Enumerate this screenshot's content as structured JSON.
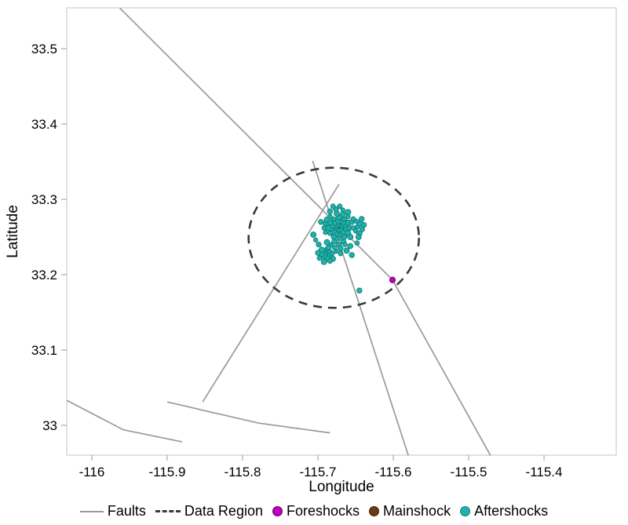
{
  "chart_data": {
    "type": "scatter",
    "title": "",
    "xlabel": "Longitude",
    "ylabel": "Latitude",
    "xlim": [
      -116.0333,
      -115.3042
    ],
    "ylim": [
      32.9604,
      33.5542
    ],
    "grid": false,
    "legend_position": "bottom",
    "x_ticks": {
      "values": [
        -116,
        -115.9,
        -115.8,
        -115.7,
        -115.6,
        -115.5,
        -115.4
      ],
      "labels": [
        "-116",
        "-115.9",
        "-115.8",
        "-115.7",
        "-115.6",
        "-115.5",
        "-115.4"
      ]
    },
    "y_ticks": {
      "values": [
        33,
        33.1,
        33.2,
        33.3,
        33.4,
        33.5
      ],
      "labels": [
        "33",
        "33.1",
        "33.2",
        "33.3",
        "33.4",
        "33.5"
      ]
    },
    "series": {
      "faults": {
        "label": "Faults",
        "color": "#9a9a9a",
        "polylines": [
          [
            [
              -115.963,
              33.554
            ],
            [
              -115.601,
              33.193
            ],
            [
              -115.471,
              32.96
            ]
          ],
          [
            [
              -115.707,
              33.351
            ],
            [
              -115.58,
              32.96
            ]
          ],
          [
            [
              -115.672,
              33.32
            ],
            [
              -115.853,
              33.031
            ]
          ],
          [
            [
              -116.033,
              33.033
            ],
            [
              -115.958,
              32.994
            ],
            [
              -115.88,
              32.978
            ]
          ],
          [
            [
              -115.9,
              33.031
            ],
            [
              -115.779,
              33.003
            ],
            [
              -115.684,
              32.99
            ]
          ]
        ]
      },
      "data_region": {
        "label": "Data Region",
        "color": "#3a3a3a",
        "style": "dashed",
        "ellipse": {
          "center": [
            -115.679,
            33.249
          ],
          "rx": 0.113,
          "ry": 0.093
        }
      },
      "foreshocks": {
        "label": "Foreshocks",
        "color": "#bf00bf",
        "edge": "#670067",
        "points": [
          [
            -115.601,
            33.193
          ]
        ]
      },
      "mainshock": {
        "label": "Mainshock",
        "color": "#6b3a10",
        "edge": "#3c2007",
        "points": [
          [
            -115.676,
            33.256
          ]
        ]
      },
      "aftershocks": {
        "label": "Aftershocks",
        "color": "#20b2aa",
        "edge": "#0e7d78",
        "points": [
          [
            -115.672,
            33.262
          ],
          [
            -115.668,
            33.262
          ],
          [
            -115.669,
            33.265
          ],
          [
            -115.672,
            33.266
          ],
          [
            -115.675,
            33.265
          ],
          [
            -115.676,
            33.262
          ],
          [
            -115.675,
            33.259
          ],
          [
            -115.672,
            33.258
          ],
          [
            -115.669,
            33.259
          ],
          [
            -115.663,
            33.264
          ],
          [
            -115.666,
            33.268
          ],
          [
            -115.67,
            33.271
          ],
          [
            -115.674,
            33.271
          ],
          [
            -115.678,
            33.268
          ],
          [
            -115.681,
            33.264
          ],
          [
            -115.681,
            33.26
          ],
          [
            -115.678,
            33.256
          ],
          [
            -115.674,
            33.253
          ],
          [
            -115.67,
            33.253
          ],
          [
            -115.666,
            33.256
          ],
          [
            -115.663,
            33.26
          ],
          [
            -115.658,
            33.262
          ],
          [
            -115.66,
            33.269
          ],
          [
            -115.665,
            33.274
          ],
          [
            -115.672,
            33.276
          ],
          [
            -115.679,
            33.274
          ],
          [
            -115.684,
            33.269
          ],
          [
            -115.686,
            33.262
          ],
          [
            -115.684,
            33.255
          ],
          [
            -115.679,
            33.25
          ],
          [
            -115.672,
            33.248
          ],
          [
            -115.665,
            33.25
          ],
          [
            -115.66,
            33.255
          ],
          [
            -115.653,
            33.262
          ],
          [
            -115.655,
            33.27
          ],
          [
            -115.66,
            33.277
          ],
          [
            -115.667,
            33.28
          ],
          [
            -115.675,
            33.281
          ],
          [
            -115.684,
            33.277
          ],
          [
            -115.69,
            33.268
          ],
          [
            -115.69,
            33.256
          ],
          [
            -115.666,
            33.244
          ],
          [
            -115.657,
            33.25
          ],
          [
            -115.688,
            33.228
          ],
          [
            -115.684,
            33.23
          ],
          [
            -115.692,
            33.23
          ],
          [
            -115.684,
            33.225
          ],
          [
            -115.691,
            33.224
          ],
          [
            -115.688,
            33.234
          ],
          [
            -115.695,
            33.227
          ],
          [
            -115.681,
            33.228
          ],
          [
            -115.687,
            33.221
          ],
          [
            -115.695,
            33.233
          ],
          [
            -115.698,
            33.222
          ],
          [
            -115.68,
            33.221
          ],
          [
            -115.676,
            33.231
          ],
          [
            -115.7,
            33.229
          ],
          [
            -115.692,
            33.217
          ],
          [
            -115.684,
            33.218
          ],
          [
            -115.678,
            33.244
          ],
          [
            -115.683,
            33.24
          ],
          [
            -115.672,
            33.24
          ],
          [
            -115.688,
            33.243
          ],
          [
            -115.678,
            33.236
          ],
          [
            -115.67,
            33.235
          ],
          [
            -115.664,
            33.24
          ],
          [
            -115.686,
            33.236
          ],
          [
            -115.662,
            33.232
          ],
          [
            -115.67,
            33.228
          ],
          [
            -115.657,
            33.238
          ],
          [
            -115.65,
            33.258
          ],
          [
            -115.647,
            33.264
          ],
          [
            -115.645,
            33.255
          ],
          [
            -115.641,
            33.26
          ],
          [
            -115.644,
            33.268
          ],
          [
            -115.649,
            33.271
          ],
          [
            -115.639,
            33.266
          ],
          [
            -115.646,
            33.25
          ],
          [
            -115.653,
            33.274
          ],
          [
            -115.642,
            33.274
          ],
          [
            -115.667,
            33.286
          ],
          [
            -115.676,
            33.287
          ],
          [
            -115.66,
            33.283
          ],
          [
            -115.671,
            33.291
          ],
          [
            -115.684,
            33.284
          ],
          [
            -115.703,
            33.246
          ],
          [
            -115.699,
            33.24
          ],
          [
            -115.706,
            33.253
          ],
          [
            -115.648,
            33.242
          ],
          [
            -115.655,
            33.226
          ],
          [
            -115.692,
            33.262
          ],
          [
            -115.696,
            33.27
          ],
          [
            -115.688,
            33.273
          ],
          [
            -115.68,
            33.291
          ],
          [
            -115.645,
            33.179
          ]
        ]
      }
    }
  },
  "legend": {
    "items": [
      {
        "key": "faults",
        "label": "Faults",
        "swatch": "line",
        "color": "#9a9a9a",
        "edge": "#9a9a9a"
      },
      {
        "key": "data-region",
        "label": "Data Region",
        "swatch": "dashed-line",
        "color": "#3a3a3a",
        "edge": "#3a3a3a"
      },
      {
        "key": "foreshocks",
        "label": "Foreshocks",
        "swatch": "dot",
        "color": "#bf00bf",
        "edge": "#670067"
      },
      {
        "key": "mainshock",
        "label": "Mainshock",
        "swatch": "dot",
        "color": "#6b3a10",
        "edge": "#3c2007"
      },
      {
        "key": "aftershocks",
        "label": "Aftershocks",
        "swatch": "dot",
        "color": "#20b2aa",
        "edge": "#0e7d78"
      }
    ]
  }
}
